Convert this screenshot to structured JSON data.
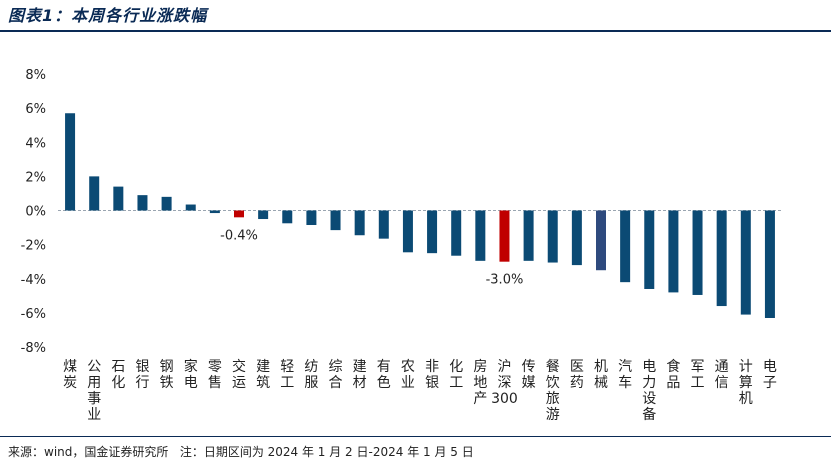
{
  "header": {
    "title": "图表1：本周各行业涨跌幅"
  },
  "footer": {
    "text": "来源：wind，国金证券研究所   注：日期区间为 2024 年 1 月 2 日-2024 年 1 月 5 日"
  },
  "colors": {
    "bar": "#0b4a74",
    "highlight": "#c00000",
    "dark": "#2e4a7e",
    "title": "#0a2a55"
  },
  "chart_data": {
    "type": "bar",
    "title": "本周各行业涨跌幅",
    "xlabel": "",
    "ylabel": "",
    "ylim": [
      -8,
      8
    ],
    "yticks": [
      8,
      6,
      4,
      2,
      0,
      -2,
      -4,
      -6,
      -8
    ],
    "ytick_labels": [
      "8%",
      "6%",
      "4%",
      "2%",
      "0%",
      "-2%",
      "-4%",
      "-6%",
      "-8%"
    ],
    "categories": [
      "煤炭",
      "公用事业",
      "石化",
      "银行",
      "钢铁",
      "家电",
      "零售",
      "交运",
      "建筑",
      "轻工",
      "纺服",
      "综合",
      "建材",
      "有色",
      "农业",
      "非银",
      "化工",
      "房地产",
      "沪深300",
      "传媒",
      "餐饮旅游",
      "医药",
      "机械",
      "汽车",
      "电力设备",
      "食品",
      "军工",
      "通信",
      "计算机",
      "电子"
    ],
    "values": [
      5.7,
      2.0,
      1.4,
      0.9,
      0.8,
      0.35,
      -0.15,
      -0.4,
      -0.5,
      -0.75,
      -0.85,
      -1.15,
      -1.45,
      -1.65,
      -2.45,
      -2.5,
      -2.65,
      -2.95,
      -3.0,
      -2.95,
      -3.05,
      -3.2,
      -3.5,
      -4.2,
      -4.6,
      -4.8,
      -4.95,
      -5.6,
      -6.1,
      -6.3
    ],
    "highlight_categories": [
      "交运",
      "沪深300"
    ],
    "dark_categories": [
      "机械"
    ],
    "annotations": [
      {
        "category": "交运",
        "text": "-0.4%"
      },
      {
        "category": "沪深300",
        "text": "-3.0%"
      }
    ]
  }
}
